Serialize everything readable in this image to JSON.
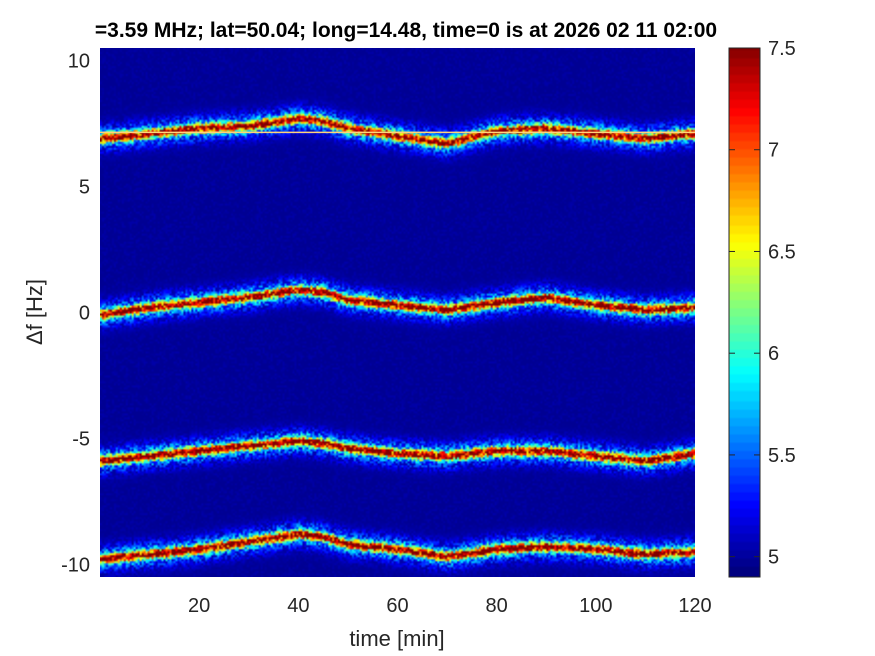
{
  "chart_data": {
    "type": "heatmap",
    "title": "=3.59 MHz;  lat=50.04; long=14.48, time=0 is at 2026 02 11 02:00",
    "xlabel": "time [min]",
    "ylabel": "Δf [Hz]",
    "xlim": [
      0,
      120
    ],
    "ylim": [
      -10.5,
      10.5
    ],
    "x_ticks": [
      "20",
      "40",
      "60",
      "80",
      "100",
      "120"
    ],
    "y_ticks": [
      "-10",
      "-5",
      "0",
      "5",
      "10"
    ],
    "x_tick_values": [
      20,
      40,
      60,
      80,
      100,
      120
    ],
    "y_tick_values": [
      -10,
      -5,
      0,
      5,
      10
    ],
    "colorbar": {
      "range": [
        4.9,
        7.5
      ],
      "ticks": [
        "5",
        "5.5",
        "6",
        "6.5",
        "7",
        "7.5"
      ],
      "tick_values": [
        5,
        5.5,
        6,
        6.5,
        7,
        7.5
      ],
      "colormap": "jet"
    },
    "reference_line_hz": 7.15,
    "background_level": 4.95,
    "traces": [
      {
        "x": [
          0,
          10,
          20,
          30,
          40,
          45,
          50,
          60,
          70,
          80,
          90,
          100,
          110,
          120
        ],
        "y": [
          6.9,
          7.1,
          7.3,
          7.4,
          7.7,
          7.6,
          7.3,
          7.0,
          6.7,
          7.2,
          7.3,
          7.1,
          6.9,
          7.1
        ]
      },
      {
        "x": [
          0,
          10,
          20,
          30,
          40,
          45,
          50,
          60,
          70,
          80,
          90,
          100,
          110,
          120
        ],
        "y": [
          -0.1,
          0.2,
          0.4,
          0.6,
          0.9,
          0.8,
          0.5,
          0.3,
          0.1,
          0.4,
          0.6,
          0.3,
          0.1,
          0.2
        ]
      },
      {
        "x": [
          0,
          10,
          20,
          30,
          40,
          45,
          50,
          60,
          70,
          80,
          90,
          100,
          110,
          120
        ],
        "y": [
          -5.9,
          -5.7,
          -5.5,
          -5.3,
          -5.1,
          -5.2,
          -5.4,
          -5.6,
          -5.7,
          -5.5,
          -5.5,
          -5.7,
          -5.9,
          -5.6
        ]
      },
      {
        "x": [
          0,
          10,
          20,
          30,
          40,
          45,
          50,
          60,
          70,
          80,
          90,
          100,
          110,
          120
        ],
        "y": [
          -9.8,
          -9.6,
          -9.4,
          -9.1,
          -8.8,
          -8.9,
          -9.2,
          -9.4,
          -9.7,
          -9.4,
          -9.3,
          -9.4,
          -9.6,
          -9.5
        ]
      }
    ]
  }
}
